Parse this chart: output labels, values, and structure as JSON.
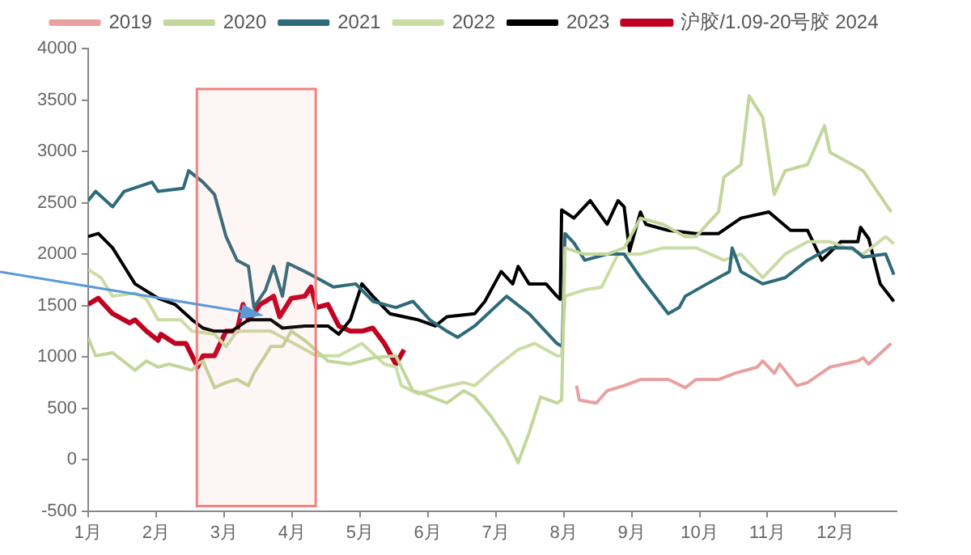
{
  "chart_data": {
    "type": "line",
    "legend": "top",
    "marker": "none",
    "line_style": "solid",
    "xlim": [
      1,
      12.9
    ],
    "xticks": [
      {
        "value": 1,
        "label": "1月"
      },
      {
        "value": 2,
        "label": "2月"
      },
      {
        "value": 3,
        "label": "3月"
      },
      {
        "value": 4,
        "label": "4月"
      },
      {
        "value": 5,
        "label": "5月"
      },
      {
        "value": 6,
        "label": "6月"
      },
      {
        "value": 7,
        "label": "7月"
      },
      {
        "value": 8,
        "label": "8月"
      },
      {
        "value": 9,
        "label": "9月"
      },
      {
        "value": 10,
        "label": "10月"
      },
      {
        "value": 11,
        "label": "11月"
      },
      {
        "value": 12,
        "label": "12月"
      }
    ],
    "ylim": [
      -500,
      4000
    ],
    "yticks": [
      -500,
      0,
      500,
      1000,
      1500,
      2000,
      2500,
      3000,
      3500,
      4000
    ],
    "bands": [
      {
        "axis": "x",
        "from": 2.6,
        "to": 4.35,
        "color": "#f4837d"
      }
    ],
    "series": [
      {
        "name": "2019",
        "color": "#e8a0a0",
        "x": [
          8.19,
          8.23,
          8.48,
          8.64,
          8.89,
          9.13,
          9.54,
          9.79,
          9.95,
          10.28,
          10.52,
          10.85,
          10.93,
          11.1,
          11.18,
          11.43,
          11.59,
          11.92,
          12.33,
          12.41,
          12.49,
          12.82
        ],
        "values": [
          720,
          580,
          550,
          670,
          720,
          780,
          780,
          700,
          780,
          780,
          840,
          900,
          960,
          840,
          930,
          720,
          750,
          900,
          960,
          990,
          930,
          1130
        ]
      },
      {
        "name": "2020",
        "color": "#c3d69b",
        "x": [
          1,
          1.11,
          1.36,
          1.69,
          1.86,
          2.03,
          2.19,
          2.53,
          2.61,
          2.69,
          2.86,
          3.03,
          3.19,
          3.36,
          3.44,
          3.69,
          3.86,
          3.99,
          4.19,
          4.53,
          4.86,
          5.19,
          5.53,
          5.78,
          5.94,
          6.28,
          6.53,
          6.69,
          6.92,
          7.16,
          7.33,
          7.49,
          7.66,
          7.9,
          7.97,
          8.02,
          8.3,
          8.64,
          8.89,
          9.13,
          9.46,
          9.79,
          9.95,
          10.11,
          10.28,
          10.36,
          10.61,
          10.73,
          10.93,
          11.1,
          11.26,
          11.59,
          11.84,
          11.92,
          12.25,
          12.41,
          12.82
        ],
        "values": [
          1190,
          1010,
          1040,
          870,
          960,
          900,
          930,
          870,
          930,
          960,
          700,
          750,
          780,
          720,
          840,
          1100,
          1100,
          1250,
          1160,
          960,
          930,
          990,
          1010,
          670,
          640,
          550,
          670,
          610,
          430,
          200,
          -30,
          260,
          610,
          550,
          580,
          2060,
          2000,
          2000,
          2060,
          2350,
          2290,
          2170,
          2170,
          2290,
          2410,
          2750,
          2870,
          3540,
          3330,
          2580,
          2810,
          2870,
          3250,
          2990,
          2870,
          2810,
          2410
        ]
      },
      {
        "name": "2021",
        "color": "#2e6b7a",
        "x": [
          1,
          1.11,
          1.36,
          1.53,
          1.94,
          2.03,
          2.4,
          2.48,
          2.69,
          2.86,
          3.03,
          3.19,
          3.36,
          3.44,
          3.61,
          3.73,
          3.86,
          3.94,
          4.19,
          4.36,
          4.61,
          4.94,
          5.19,
          5.53,
          5.78,
          6.03,
          6.28,
          6.44,
          6.69,
          7.16,
          7.49,
          7.9,
          7.98,
          8.02,
          8.15,
          8.31,
          8.64,
          8.89,
          9.13,
          9.54,
          9.7,
          9.79,
          10.11,
          10.44,
          10.48,
          10.61,
          10.93,
          11.26,
          11.59,
          11.92,
          12.25,
          12.41,
          12.74,
          12.86
        ],
        "values": [
          2520,
          2610,
          2460,
          2610,
          2700,
          2610,
          2640,
          2810,
          2700,
          2580,
          2170,
          1940,
          1880,
          1480,
          1650,
          1880,
          1590,
          1910,
          1830,
          1770,
          1680,
          1710,
          1540,
          1480,
          1540,
          1360,
          1250,
          1190,
          1300,
          1590,
          1420,
          1130,
          1100,
          2200,
          2110,
          1940,
          2000,
          2000,
          1770,
          1420,
          1480,
          1590,
          1710,
          1830,
          2060,
          1830,
          1710,
          1770,
          1940,
          2060,
          2060,
          1970,
          2000,
          1800
        ]
      },
      {
        "name": "2022",
        "color": "#cbdca5",
        "x": [
          1,
          1.19,
          1.36,
          1.69,
          1.86,
          2.03,
          2.36,
          2.53,
          2.86,
          3.03,
          3.19,
          3.53,
          3.69,
          3.86,
          4.03,
          4.36,
          4.69,
          5.03,
          5.36,
          5.53,
          5.61,
          5.86,
          6.19,
          6.53,
          6.69,
          7,
          7.33,
          7.57,
          7.9,
          7.97,
          8.02,
          8.3,
          8.56,
          8.8,
          9.13,
          9.46,
          9.95,
          10.36,
          10.61,
          10.93,
          11.26,
          11.59,
          11.92,
          12.41,
          12.74,
          12.86
        ],
        "values": [
          1850,
          1770,
          1590,
          1620,
          1560,
          1360,
          1360,
          1250,
          1220,
          1100,
          1250,
          1250,
          1250,
          1190,
          1130,
          1010,
          1010,
          1130,
          930,
          900,
          720,
          640,
          700,
          750,
          720,
          900,
          1070,
          1130,
          1010,
          1010,
          1590,
          1650,
          1680,
          2000,
          2000,
          2060,
          2060,
          1940,
          2000,
          1770,
          2000,
          2120,
          2120,
          2000,
          2170,
          2100
        ]
      },
      {
        "name": "2023",
        "color": "#000000",
        "x": [
          1,
          1.15,
          1.36,
          1.53,
          1.69,
          2.03,
          2.28,
          2.53,
          2.69,
          2.86,
          3.11,
          3.36,
          3.69,
          3.86,
          4.19,
          4.53,
          4.69,
          4.86,
          5.03,
          5.19,
          5.44,
          5.86,
          6.11,
          6.28,
          6.69,
          6.84,
          7.08,
          7.25,
          7.33,
          7.49,
          7.74,
          7.9,
          7.95,
          7.97,
          8.15,
          8.39,
          8.64,
          8.8,
          8.89,
          8.97,
          9.13,
          9.21,
          9.54,
          9.95,
          10.28,
          10.61,
          11.02,
          11.34,
          11.59,
          11.8,
          12.08,
          12.33,
          12.37,
          12.49,
          12.66,
          12.86
        ],
        "values": [
          2170,
          2200,
          2060,
          1880,
          1710,
          1570,
          1510,
          1360,
          1280,
          1250,
          1250,
          1360,
          1360,
          1280,
          1300,
          1300,
          1220,
          1360,
          1710,
          1590,
          1420,
          1360,
          1300,
          1390,
          1420,
          1540,
          1830,
          1710,
          1880,
          1710,
          1710,
          1590,
          1560,
          2430,
          2350,
          2520,
          2290,
          2520,
          2460,
          2030,
          2410,
          2290,
          2230,
          2200,
          2200,
          2350,
          2410,
          2230,
          2230,
          1940,
          2120,
          2120,
          2260,
          2150,
          1710,
          1540
        ]
      },
      {
        "name": "沪胶/1.09-20号胶 2024",
        "color": "#c00020",
        "x": [
          1,
          1.15,
          1.36,
          1.61,
          1.69,
          1.86,
          2.03,
          2.07,
          2.28,
          2.44,
          2.53,
          2.61,
          2.69,
          2.86,
          3.03,
          3.19,
          3.28,
          3.36,
          3.44,
          3.53,
          3.61,
          3.73,
          3.82,
          3.99,
          4.19,
          4.28,
          4.36,
          4.53,
          4.69,
          4.86,
          5.03,
          5.19,
          5.36,
          5.53,
          5.65
        ],
        "values": [
          1510,
          1570,
          1420,
          1330,
          1360,
          1250,
          1160,
          1220,
          1130,
          1130,
          1010,
          900,
          1010,
          1010,
          1250,
          1250,
          1510,
          1360,
          1420,
          1510,
          1540,
          1590,
          1390,
          1570,
          1590,
          1680,
          1480,
          1510,
          1300,
          1250,
          1250,
          1280,
          1130,
          930,
          1070
        ]
      }
    ]
  }
}
